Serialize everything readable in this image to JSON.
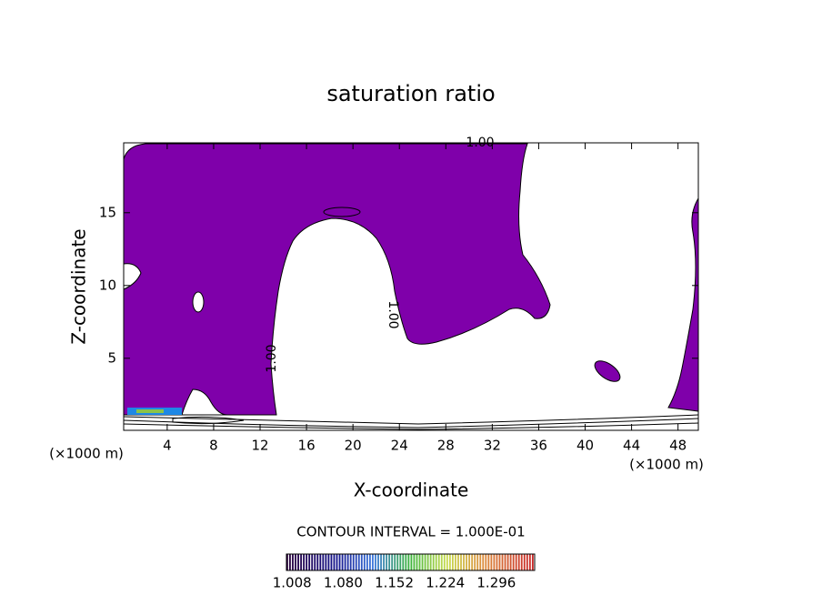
{
  "chart_data": {
    "type": "contour",
    "title": "saturation ratio",
    "x_label": "X-coordinate",
    "y_label": "Z-coordinate",
    "x_unit_label": "(×1000 m)",
    "x_unit_label_right": "(×1000 m)",
    "xlim": [
      0.25,
      49.75
    ],
    "ylim": [
      0.05,
      19.8
    ],
    "xticks": [
      4,
      8,
      12,
      16,
      20,
      24,
      28,
      32,
      36,
      40,
      44,
      48
    ],
    "yticks": [
      5,
      10,
      15
    ],
    "fill_color": "#7f00aa",
    "annotations": [
      {
        "value": 1,
        "label": "1.00"
      },
      {
        "value": 1,
        "label": "1.00"
      },
      {
        "value": 1,
        "label": "1.00"
      }
    ],
    "contour_interval_label": "CONTOUR INTERVAL = 1.000E-01",
    "colorbar": {
      "clim": [
        1.0,
        1.35
      ],
      "ticks": [
        {
          "value": 1.008,
          "label": "1.008"
        },
        {
          "value": 1.08,
          "label": "1.080"
        },
        {
          "value": 1.152,
          "label": "1.152"
        },
        {
          "value": 1.224,
          "label": "1.224"
        },
        {
          "value": 1.296,
          "label": "1.296"
        }
      ]
    }
  }
}
